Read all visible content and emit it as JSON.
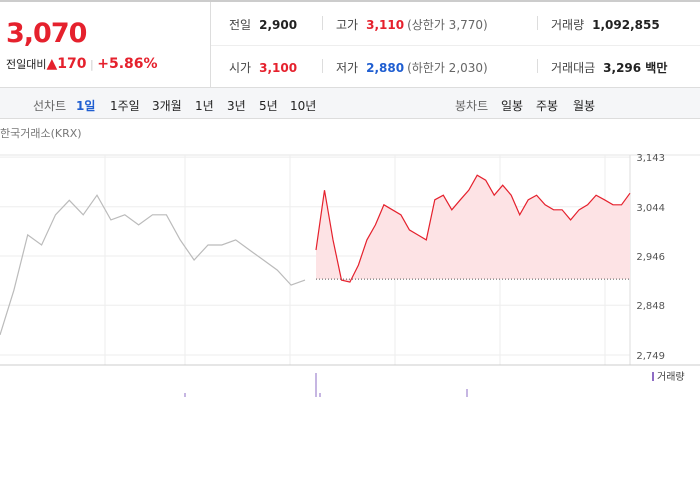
{
  "header": {
    "price": "3,070",
    "change_label": "전일대비",
    "change": "170",
    "change_rate": "+5.86%"
  },
  "stats": [
    {
      "label": "전일",
      "value": "2,900",
      "color": "#222222"
    },
    {
      "label": "고가",
      "value": "3,110",
      "note": "(상한가 3,770)",
      "color": "#e5212d"
    },
    {
      "label": "거래량",
      "value": "1,092,855",
      "color": "#222222"
    },
    {
      "label": "시가",
      "value": "3,100",
      "color": "#e5212d"
    },
    {
      "label": "저가",
      "value": "2,880",
      "note": "(하한가 2,030)",
      "color": "#1f5ed1"
    },
    {
      "label": "거래대금",
      "value": "3,296 백만",
      "color": "#222222"
    }
  ],
  "tabs": {
    "line_label": "선차트",
    "line": [
      "1일",
      "1주일",
      "3개월",
      "1년",
      "3년",
      "5년",
      "10년"
    ],
    "candle_label": "봉차트",
    "candle": [
      "일봉",
      "주봉",
      "월봉"
    ]
  },
  "chart_data": {
    "type": "line",
    "source": "한국거래소(KRX)",
    "ylim": [
      2729,
      3177
    ],
    "yticks": [
      {
        "value": 3143,
        "label": "3,143"
      },
      {
        "value": 3044,
        "label": "3,044"
      },
      {
        "value": 2946,
        "label": "2,946"
      },
      {
        "value": 2848,
        "label": "2,848"
      },
      {
        "value": 2749,
        "label": "2,749"
      }
    ],
    "grid": true,
    "baseline": 2900,
    "series": [
      {
        "color": "#bbbbbb",
        "values": [
          2789,
          2878,
          2988,
          2968,
          3028,
          3057,
          3028,
          3067,
          3018,
          3028,
          3008,
          3028,
          3028,
          2978,
          2938,
          2968,
          2968,
          2978,
          2958,
          2938,
          2918,
          2888,
          2898
        ]
      },
      {
        "color": "#e5212d",
        "fill": "#fde3e5",
        "values": [
          2958,
          3077,
          2978,
          2898,
          2894,
          2928,
          2978,
          3008,
          3048,
          3038,
          3028,
          2998,
          2988,
          2978,
          3058,
          3067,
          3038,
          3058,
          3077,
          3107,
          3097,
          3067,
          3087,
          3067,
          3028,
          3058,
          3067,
          3048,
          3038,
          3038,
          3018,
          3038,
          3048,
          3067,
          3058,
          3048,
          3048,
          3071
        ]
      }
    ],
    "volume_label": "거래량",
    "volume_color": "#8e6cc4"
  }
}
